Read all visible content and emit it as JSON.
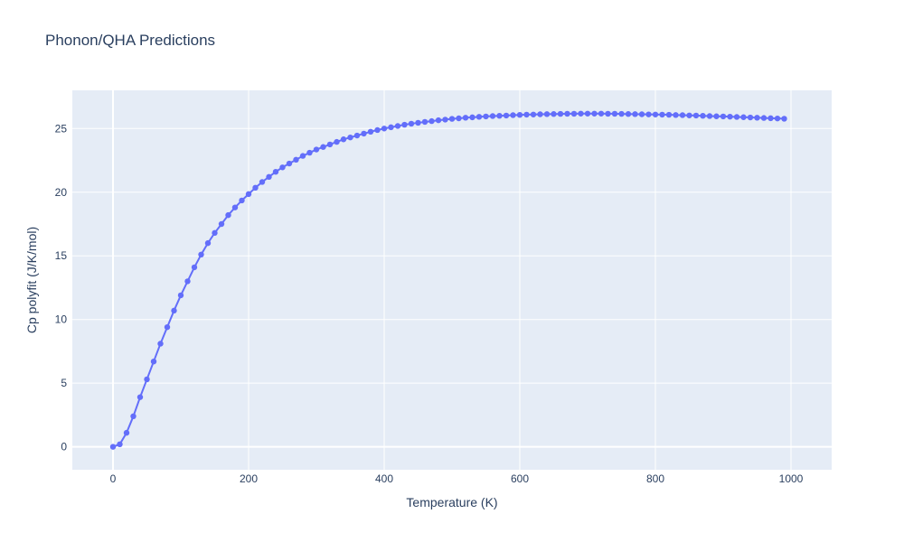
{
  "chart_data": {
    "type": "line",
    "title": "Phonon/QHA Predictions",
    "xlabel": "Temperature (K)",
    "ylabel": "Cp polyfit (J/K/mol)",
    "xlim": [
      -60,
      1060
    ],
    "ylim": [
      -1.8,
      28.0
    ],
    "xticks": [
      0,
      200,
      400,
      600,
      800,
      1000
    ],
    "xtick_labels": [
      "0",
      "200",
      "400",
      "600",
      "800",
      "1000"
    ],
    "yticks": [
      0,
      5,
      10,
      15,
      20,
      25
    ],
    "ytick_labels": [
      "0",
      "5",
      "10",
      "15",
      "20",
      "25"
    ],
    "grid": true,
    "legend": false,
    "colors": {
      "series": "#636efa",
      "plot_bg": "#e5ecf6",
      "grid": "#ffffff",
      "text": "#2a3f5f"
    },
    "series": [
      {
        "mode": "lines+markers",
        "x": [
          0,
          10,
          20,
          30,
          40,
          50,
          60,
          70,
          80,
          90,
          100,
          110,
          120,
          130,
          140,
          150,
          160,
          170,
          180,
          190,
          200,
          210,
          220,
          230,
          240,
          250,
          260,
          270,
          280,
          290,
          300,
          310,
          320,
          330,
          340,
          350,
          360,
          370,
          380,
          390,
          400,
          410,
          420,
          430,
          440,
          450,
          460,
          470,
          480,
          490,
          500,
          510,
          520,
          530,
          540,
          550,
          560,
          570,
          580,
          590,
          600,
          610,
          620,
          630,
          640,
          650,
          660,
          670,
          680,
          690,
          700,
          710,
          720,
          730,
          740,
          750,
          760,
          770,
          780,
          790,
          800,
          810,
          820,
          830,
          840,
          850,
          860,
          870,
          880,
          890,
          900,
          910,
          920,
          930,
          940,
          950,
          960,
          970,
          980,
          990
        ],
        "y": [
          0.0,
          0.2,
          1.1,
          2.4,
          3.9,
          5.3,
          6.7,
          8.1,
          9.4,
          10.7,
          11.9,
          13.0,
          14.1,
          15.1,
          16.0,
          16.8,
          17.5,
          18.2,
          18.8,
          19.35,
          19.85,
          20.35,
          20.8,
          21.2,
          21.6,
          21.95,
          22.25,
          22.55,
          22.85,
          23.1,
          23.35,
          23.55,
          23.75,
          23.95,
          24.15,
          24.3,
          24.45,
          24.6,
          24.75,
          24.88,
          25.0,
          25.1,
          25.2,
          25.3,
          25.38,
          25.45,
          25.52,
          25.58,
          25.65,
          25.7,
          25.76,
          25.8,
          25.85,
          25.88,
          25.92,
          25.95,
          25.98,
          26.0,
          26.02,
          26.05,
          26.07,
          26.09,
          26.1,
          26.12,
          26.13,
          26.14,
          26.15,
          26.16,
          26.16,
          26.17,
          26.17,
          26.17,
          26.17,
          26.16,
          26.16,
          26.15,
          26.14,
          26.13,
          26.12,
          26.11,
          26.1,
          26.09,
          26.08,
          26.06,
          26.05,
          26.03,
          26.02,
          26.0,
          25.98,
          25.96,
          25.95,
          25.93,
          25.91,
          25.89,
          25.87,
          25.85,
          25.83,
          25.81,
          25.79,
          25.77
        ]
      }
    ]
  }
}
